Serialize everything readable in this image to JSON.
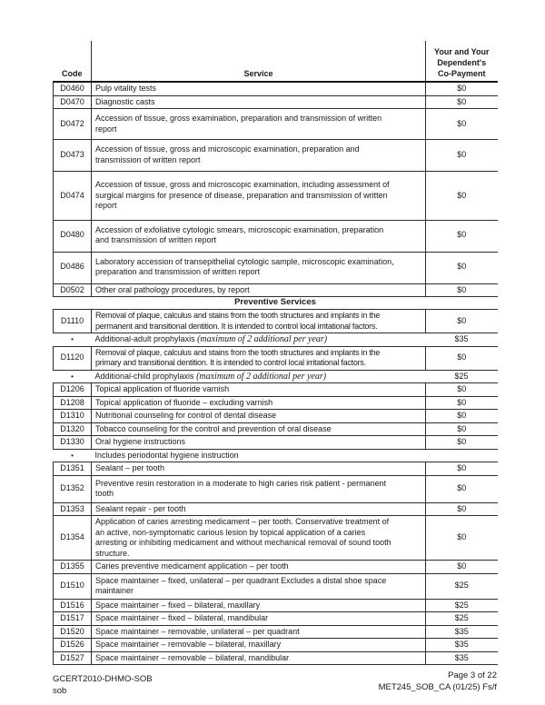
{
  "table": {
    "headers": {
      "code": "Code",
      "service": "Service",
      "copay": "Your and Your\nDependent's\nCo-Payment"
    },
    "bullet_char": "•",
    "rows": [
      {
        "type": "item",
        "code": "D0460",
        "service": "Pulp vitality tests",
        "copay": "$0"
      },
      {
        "type": "item",
        "code": "D0470",
        "service": "Diagnostic casts",
        "copay": "$0"
      },
      {
        "type": "item",
        "code": "D0472",
        "service": "Accession of tissue, gross examination, preparation and transmission of written\nreport",
        "copay": "$0"
      },
      {
        "type": "item",
        "code": "D0473",
        "service": "Accession of tissue, gross and microscopic examination, preparation and\ntransmission of written report",
        "copay": "$0"
      },
      {
        "type": "item",
        "code": "D0474",
        "service": "Accession of tissue, gross and microscopic examination, including assessment of\nsurgical margins for presence of disease, preparation and transmission of written\nreport",
        "copay": "$0"
      },
      {
        "type": "item",
        "code": "D0480",
        "service": "Accession of exfoliative cytologic smears, microscopic examination, preparation\nand transmission of written report",
        "copay": "$0"
      },
      {
        "type": "item",
        "code": "D0486",
        "service": "Laboratory accession of transepithelial cytologic sample, microscopic examination,\npreparation and transmission of written report",
        "copay": "$0"
      },
      {
        "type": "item",
        "code": "D0502",
        "service": "Other oral pathology procedures, by report",
        "copay": "$0"
      },
      {
        "type": "section",
        "title": "Preventive Services"
      },
      {
        "type": "item",
        "code": "D1110",
        "service": "Removal of plaque, calculus and stains from the tooth structures and implants in the\npermanent and transitional dentition. It is intended to control local irritational factors.",
        "copay": "$0"
      },
      {
        "type": "bullet",
        "label": "Additional-adult prophylaxis ",
        "note": "(maximum of 2 additional per year)",
        "copay": "$35"
      },
      {
        "type": "item",
        "code": "D1120",
        "service": "Removal of plaque, calculus and stains from the tooth structures and implants in the\nprimary and transitional dentition. It is intended to control local irritational factors.",
        "copay": "$0"
      },
      {
        "type": "bullet",
        "label": "Additional-child prophylaxis ",
        "note": "(maximum of 2 additional per year)",
        "copay": "$25"
      },
      {
        "type": "item",
        "code": "D1206",
        "service": "Topical application of fluoride varnish",
        "copay": "$0"
      },
      {
        "type": "item",
        "code": "D1208",
        "service": "Topical application of fluoride – excluding varnish",
        "copay": "$0"
      },
      {
        "type": "item",
        "code": "D1310",
        "service": "Nutritional counseling for control of dental disease",
        "copay": "$0"
      },
      {
        "type": "item",
        "code": "D1320",
        "service": "Tobacco counseling for the control and prevention of oral disease",
        "copay": "$0"
      },
      {
        "type": "item",
        "code": "D1330",
        "service": "Oral hygiene instructions",
        "copay": "$0"
      },
      {
        "type": "note",
        "label": "Includes periodontal hygiene instruction"
      },
      {
        "type": "item",
        "code": "D1351",
        "service": "Sealant – per tooth",
        "copay": "$0"
      },
      {
        "type": "item",
        "code": "D1352",
        "service": "Preventive resin restoration in a moderate to high caries risk patient - permanent\ntooth",
        "copay": "$0"
      },
      {
        "type": "item",
        "code": "D1353",
        "service": "Sealant repair - per tooth",
        "copay": "$0"
      },
      {
        "type": "item",
        "code": "D1354",
        "service": "Application of caries arresting medicament – per tooth. Conservative treatment of\nan active, non-symptomatic carious lesion by topical application of a caries\narresting or inhibiting medicament and without mechanical removal of sound tooth\nstructure.",
        "copay": "$0"
      },
      {
        "type": "item",
        "code": "D1355",
        "service": "Caries preventive medicament application – per tooth",
        "copay": "$0"
      },
      {
        "type": "item",
        "code": "D1510",
        "service": "Space maintainer – fixed, unilateral – per quadrant Excludes a distal shoe space\nmaintainer",
        "copay": "$25"
      },
      {
        "type": "item",
        "code": "D1516",
        "service": "Space maintainer – fixed – bilateral, maxillary",
        "copay": "$25"
      },
      {
        "type": "item",
        "code": "D1517",
        "service": "Space maintainer – fixed – bilateral, mandibular",
        "copay": "$25"
      },
      {
        "type": "item",
        "code": "D1520",
        "service": "Space maintainer – removable, unilateral – per quadrant",
        "copay": "$35"
      },
      {
        "type": "item",
        "code": "D1526",
        "service": "Space maintainer – removable – bilateral, maxillary",
        "copay": "$35"
      },
      {
        "type": "item",
        "code": "D1527",
        "service": "Space maintainer – removable – bilateral, mandibular",
        "copay": "$35"
      }
    ]
  },
  "footer": {
    "doc_id": "GCERT2010-DHMO-SOB",
    "doc_sub": "sob",
    "page_indicator": "Page 3 of 22",
    "form_code": "MET245_SOB_CA (01/25) Fs/f"
  }
}
